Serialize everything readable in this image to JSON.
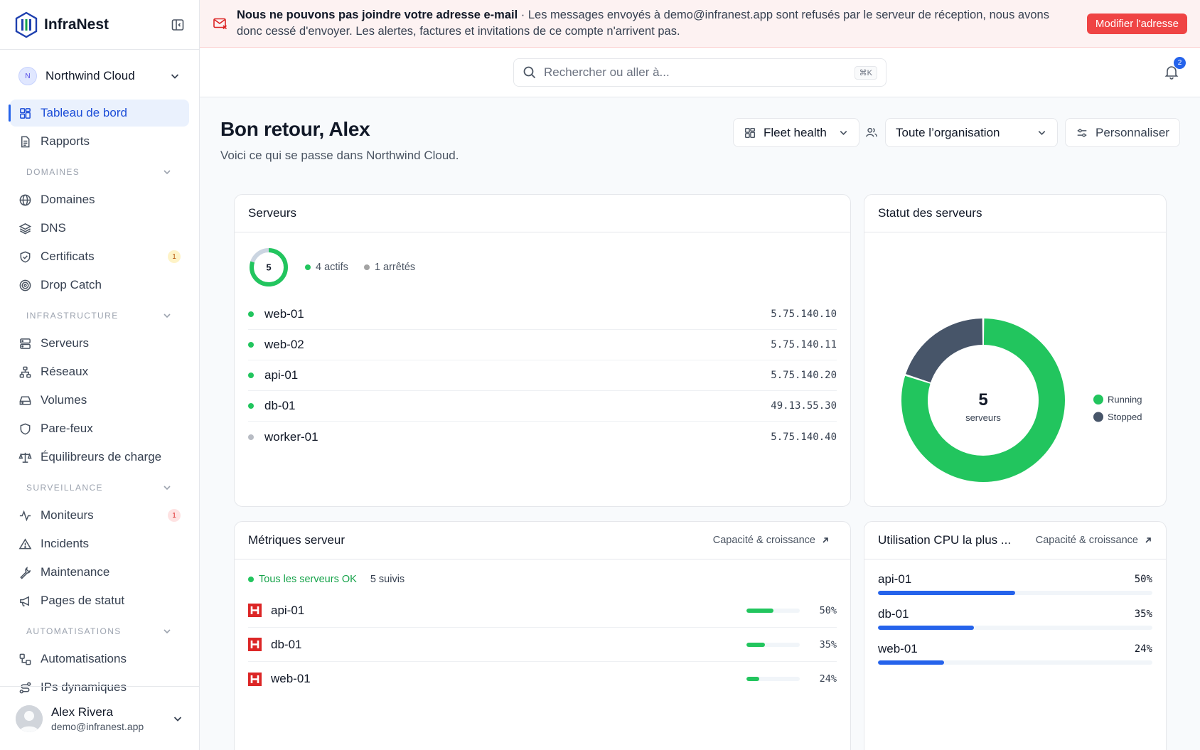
{
  "brand": {
    "name": "InfraNest"
  },
  "org": {
    "initial": "N",
    "name": "Northwind Cloud"
  },
  "nav_top": [
    {
      "label": "Tableau de bord",
      "icon": "dashboard-icon",
      "active": true
    },
    {
      "label": "Rapports",
      "icon": "report-icon"
    }
  ],
  "sections": [
    {
      "title": "DOMAINES",
      "items": [
        {
          "label": "Domaines",
          "icon": "globe-icon"
        },
        {
          "label": "DNS",
          "icon": "layers-icon"
        },
        {
          "label": "Certificats",
          "icon": "shield-check-icon",
          "badge": "1",
          "badge_color": "amber"
        },
        {
          "label": "Drop Catch",
          "icon": "target-icon"
        }
      ]
    },
    {
      "title": "INFRASTRUCTURE",
      "items": [
        {
          "label": "Serveurs",
          "icon": "server-icon"
        },
        {
          "label": "Réseaux",
          "icon": "network-icon"
        },
        {
          "label": "Volumes",
          "icon": "hard-drive-icon"
        },
        {
          "label": "Pare-feux",
          "icon": "shield-icon"
        },
        {
          "label": "Équilibreurs de charge",
          "icon": "scale-icon"
        }
      ]
    },
    {
      "title": "SURVEILLANCE",
      "items": [
        {
          "label": "Moniteurs",
          "icon": "activity-icon",
          "badge": "1",
          "badge_color": "red"
        },
        {
          "label": "Incidents",
          "icon": "alert-triangle-icon"
        },
        {
          "label": "Maintenance",
          "icon": "wrench-icon"
        },
        {
          "label": "Pages de statut",
          "icon": "megaphone-icon"
        }
      ]
    },
    {
      "title": "AUTOMATISATIONS",
      "items": [
        {
          "label": "Automatisations",
          "icon": "workflow-icon"
        },
        {
          "label": "IPs dynamiques",
          "icon": "route-icon"
        }
      ]
    }
  ],
  "user": {
    "name": "Alex Rivera",
    "email": "demo@infranest.app"
  },
  "alert": {
    "title": "Nous ne pouvons pas joindre votre adresse e-mail",
    "separator": " · ",
    "message": "Les messages envoyés à demo@infranest.app sont refusés par le serveur de réception, nous avons donc cessé d'envoyer. Les alertes, factures et invitations de ce compte n'arrivent pas.",
    "button": "Modifier l'adresse"
  },
  "search": {
    "placeholder": "Rechercher ou aller à...",
    "shortcut": "⌘K"
  },
  "notifications": {
    "count": "2"
  },
  "header": {
    "title": "Bon retour, Alex",
    "subtitle": "Voici ce qui se passe dans Northwind Cloud.",
    "view_select": "Fleet health",
    "scope_select": "Toute l’organisation",
    "customize": "Personnaliser"
  },
  "servers_card": {
    "title": "Serveurs",
    "total": "5",
    "running_count": 4,
    "stopped_count": 1,
    "active_label": "4 actifs",
    "stopped_label": "1 arrêtés",
    "rows": [
      {
        "name": "web-01",
        "ip": "5.75.140.10",
        "status": "running"
      },
      {
        "name": "web-02",
        "ip": "5.75.140.11",
        "status": "running"
      },
      {
        "name": "api-01",
        "ip": "5.75.140.20",
        "status": "running"
      },
      {
        "name": "db-01",
        "ip": "49.13.55.30",
        "status": "running"
      },
      {
        "name": "worker-01",
        "ip": "5.75.140.40",
        "status": "stopped"
      }
    ]
  },
  "status_card": {
    "title": "Statut des serveurs",
    "center_value": "5",
    "center_label": "serveurs",
    "legend": [
      {
        "name": "Running",
        "value": 4,
        "color": "#22c55e"
      },
      {
        "name": "Stopped",
        "value": 1,
        "color": "#475569"
      }
    ]
  },
  "metrics_card": {
    "title": "Métriques serveur",
    "link": "Capacité & croissance",
    "status_ok": "Tous les serveurs OK",
    "tracked": "5 suivis",
    "rows": [
      {
        "name": "api-01",
        "pct_label": "50%",
        "value": 0.5
      },
      {
        "name": "db-01",
        "pct_label": "35%",
        "value": 0.35
      },
      {
        "name": "web-01",
        "pct_label": "24%",
        "value": 0.24
      }
    ]
  },
  "cpu_card": {
    "title": "Utilisation CPU la plus ...",
    "link": "Capacité & croissance",
    "rows": [
      {
        "name": "api-01",
        "pct_label": "50%",
        "value": 0.5
      },
      {
        "name": "db-01",
        "pct_label": "35%",
        "value": 0.35
      },
      {
        "name": "web-01",
        "pct_label": "24%",
        "value": 0.24
      }
    ]
  },
  "colors": {
    "accent": "#2563eb",
    "running": "#22c55e",
    "stopped": "#475569",
    "danger": "#ef4444"
  }
}
